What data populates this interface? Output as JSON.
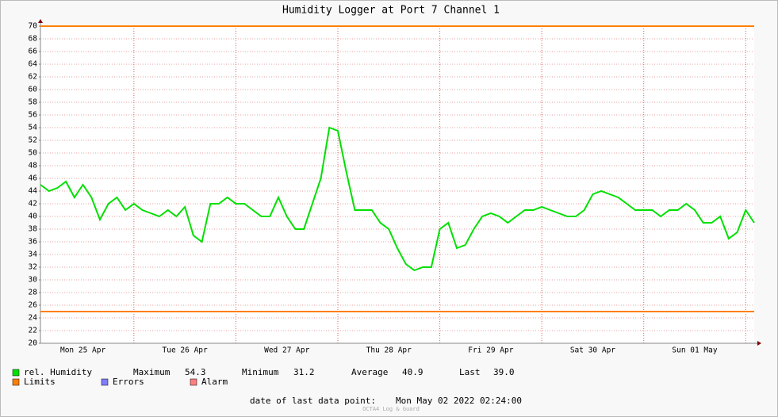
{
  "chart_data": {
    "type": "line",
    "title": "Humidity Logger at Port 7 Channel 1",
    "x": [
      null,
      null,
      null,
      null,
      null,
      "Mon 25 Apr",
      null,
      null,
      null,
      null,
      null,
      null,
      null,
      null,
      null,
      null,
      null,
      "Tue 26 Apr",
      null,
      null,
      null,
      null,
      null,
      null,
      null,
      null,
      null,
      null,
      null,
      "Wed 27 Apr",
      null,
      null,
      null,
      null,
      null,
      null,
      null,
      null,
      null,
      null,
      null,
      "Thu 28 Apr",
      null,
      null,
      null,
      null,
      null,
      null,
      null,
      null,
      null,
      null,
      null,
      "Fri 29 Apr",
      null,
      null,
      null,
      null,
      null,
      null,
      null,
      null,
      null,
      null,
      null,
      "Sat 30 Apr",
      null,
      null,
      null,
      null,
      null,
      null,
      null,
      null,
      null,
      null,
      null,
      "Sun 01 May",
      null,
      null,
      null,
      null,
      null,
      null,
      null
    ],
    "series": [
      {
        "name": "rel. Humidity",
        "color": "#00e000",
        "values": [
          45,
          44,
          44.5,
          45.5,
          43,
          45,
          43,
          39.5,
          42,
          43,
          41,
          42,
          41,
          40.5,
          40,
          41,
          40,
          41.5,
          37,
          36,
          42,
          42,
          43,
          42,
          42,
          41,
          40,
          40,
          43,
          40,
          38,
          38,
          42,
          46,
          54,
          53.5,
          47,
          41,
          41,
          41,
          39,
          38,
          35,
          32.5,
          31.5,
          32,
          32,
          38,
          39,
          35,
          35.5,
          38,
          40,
          40.5,
          40,
          39,
          40,
          41,
          41,
          41.5,
          41,
          40.5,
          40,
          40,
          41,
          43.5,
          44,
          43.5,
          43,
          42,
          41,
          41,
          41,
          40,
          41,
          41,
          42,
          41,
          39,
          39,
          40,
          36.5,
          37.5,
          41,
          39
        ]
      }
    ],
    "limits": {
      "name": "Limits",
      "color": "#ff7f00",
      "values": [
        70,
        25
      ]
    },
    "legend_extra": [
      {
        "name": "Errors",
        "color": "#7f7fff"
      },
      {
        "name": "Alarm",
        "color": "#ff7f7f"
      }
    ],
    "stats": [
      {
        "label": "Maximum",
        "value": 54.3
      },
      {
        "label": "Minimum",
        "value": 31.2
      },
      {
        "label": "Average",
        "value": 40.9
      },
      {
        "label": "Last",
        "value": 39.0,
        "value_label": "39.0"
      }
    ],
    "footer_label": "date of last data point:",
    "footer_value": "Mon May 02 2022 02:24:00",
    "watermark": "OCTA4 Log & Guard",
    "ylim": [
      20,
      70
    ],
    "yticks": [
      20,
      22,
      24,
      26,
      28,
      30,
      32,
      34,
      36,
      38,
      40,
      42,
      44,
      46,
      48,
      50,
      52,
      54,
      56,
      58,
      60,
      62,
      64,
      66,
      68,
      70
    ],
    "grid": true
  }
}
